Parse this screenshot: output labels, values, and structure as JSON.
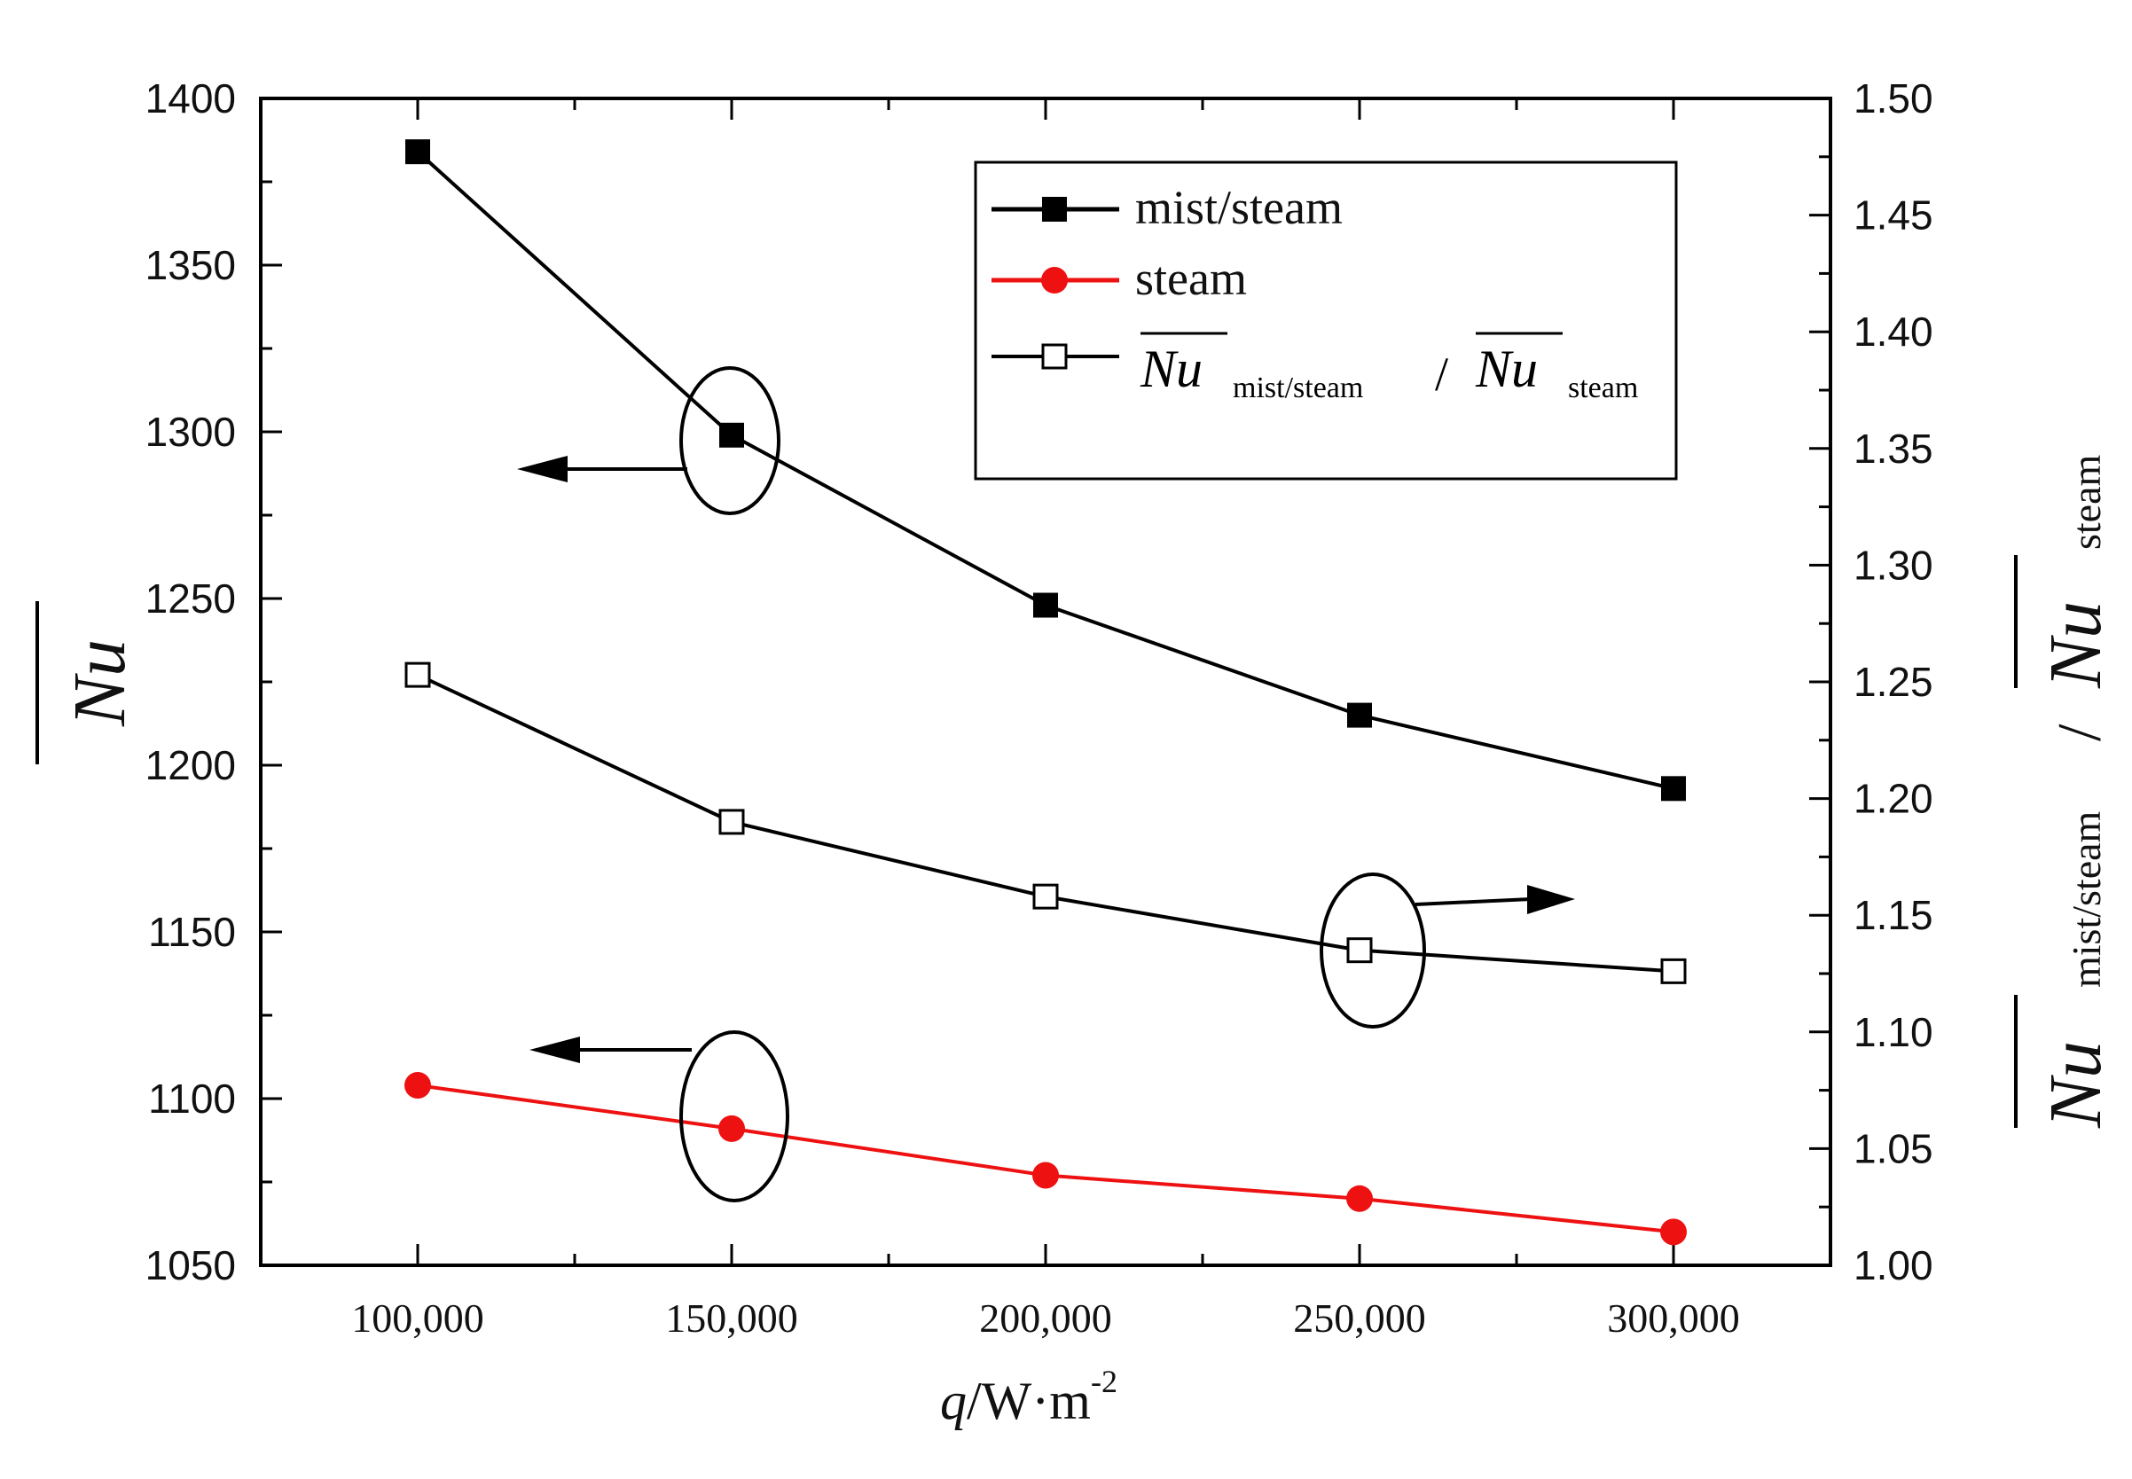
{
  "chart_data": {
    "type": "line",
    "x": [
      100000,
      150000,
      200000,
      250000,
      300000
    ],
    "x_tick_labels": [
      "100,000",
      "150,000",
      "200,000",
      "250,000",
      "300,000"
    ],
    "xlim": [
      75000,
      325000
    ],
    "xlabel": {
      "q": "q",
      "unit": "/W·m",
      "exp": "-2"
    },
    "left_axis": {
      "label": "Nu",
      "ylim": [
        1050,
        1400
      ],
      "ticks": [
        "1050",
        "1100",
        "1150",
        "1200",
        "1250",
        "1300",
        "1350",
        "1400"
      ]
    },
    "right_axis": {
      "label": {
        "nu1": "Nu",
        "sub1": "mist/steam",
        "slash": "/",
        "nu2": "Nu",
        "sub2": "steam"
      },
      "ylim": [
        1.0,
        1.5
      ],
      "ticks": [
        "1.00",
        "1.05",
        "1.10",
        "1.15",
        "1.20",
        "1.25",
        "1.30",
        "1.35",
        "1.40",
        "1.45",
        "1.50"
      ]
    },
    "series": [
      {
        "name": "mist/steam",
        "axis": "left",
        "color": "#000000",
        "marker": "filled-square",
        "values": [
          1384,
          1299,
          1248,
          1215,
          1193
        ]
      },
      {
        "name": "steam",
        "axis": "left",
        "color": "#ee1111",
        "marker": "filled-circle",
        "values": [
          1104,
          1091,
          1077,
          1070,
          1060
        ]
      },
      {
        "name_parts": {
          "nu1": "Nu",
          "sub1": "mist/steam",
          "slash": "/",
          "nu2": "Nu",
          "sub2": "steam"
        },
        "axis": "right",
        "color": "#000000",
        "marker": "open-square",
        "values": [
          1.253,
          1.19,
          1.158,
          1.135,
          1.126
        ]
      }
    ],
    "legend": {
      "placement": "top-right",
      "entries": [
        "mist/steam",
        "steam"
      ]
    },
    "annotations": [
      {
        "type": "ellipse-arrow",
        "series": "mist/steam",
        "direction": "left"
      },
      {
        "type": "ellipse-arrow",
        "series": "ratio",
        "direction": "right"
      },
      {
        "type": "ellipse-arrow",
        "series": "steam",
        "direction": "left"
      }
    ],
    "grid": false
  }
}
